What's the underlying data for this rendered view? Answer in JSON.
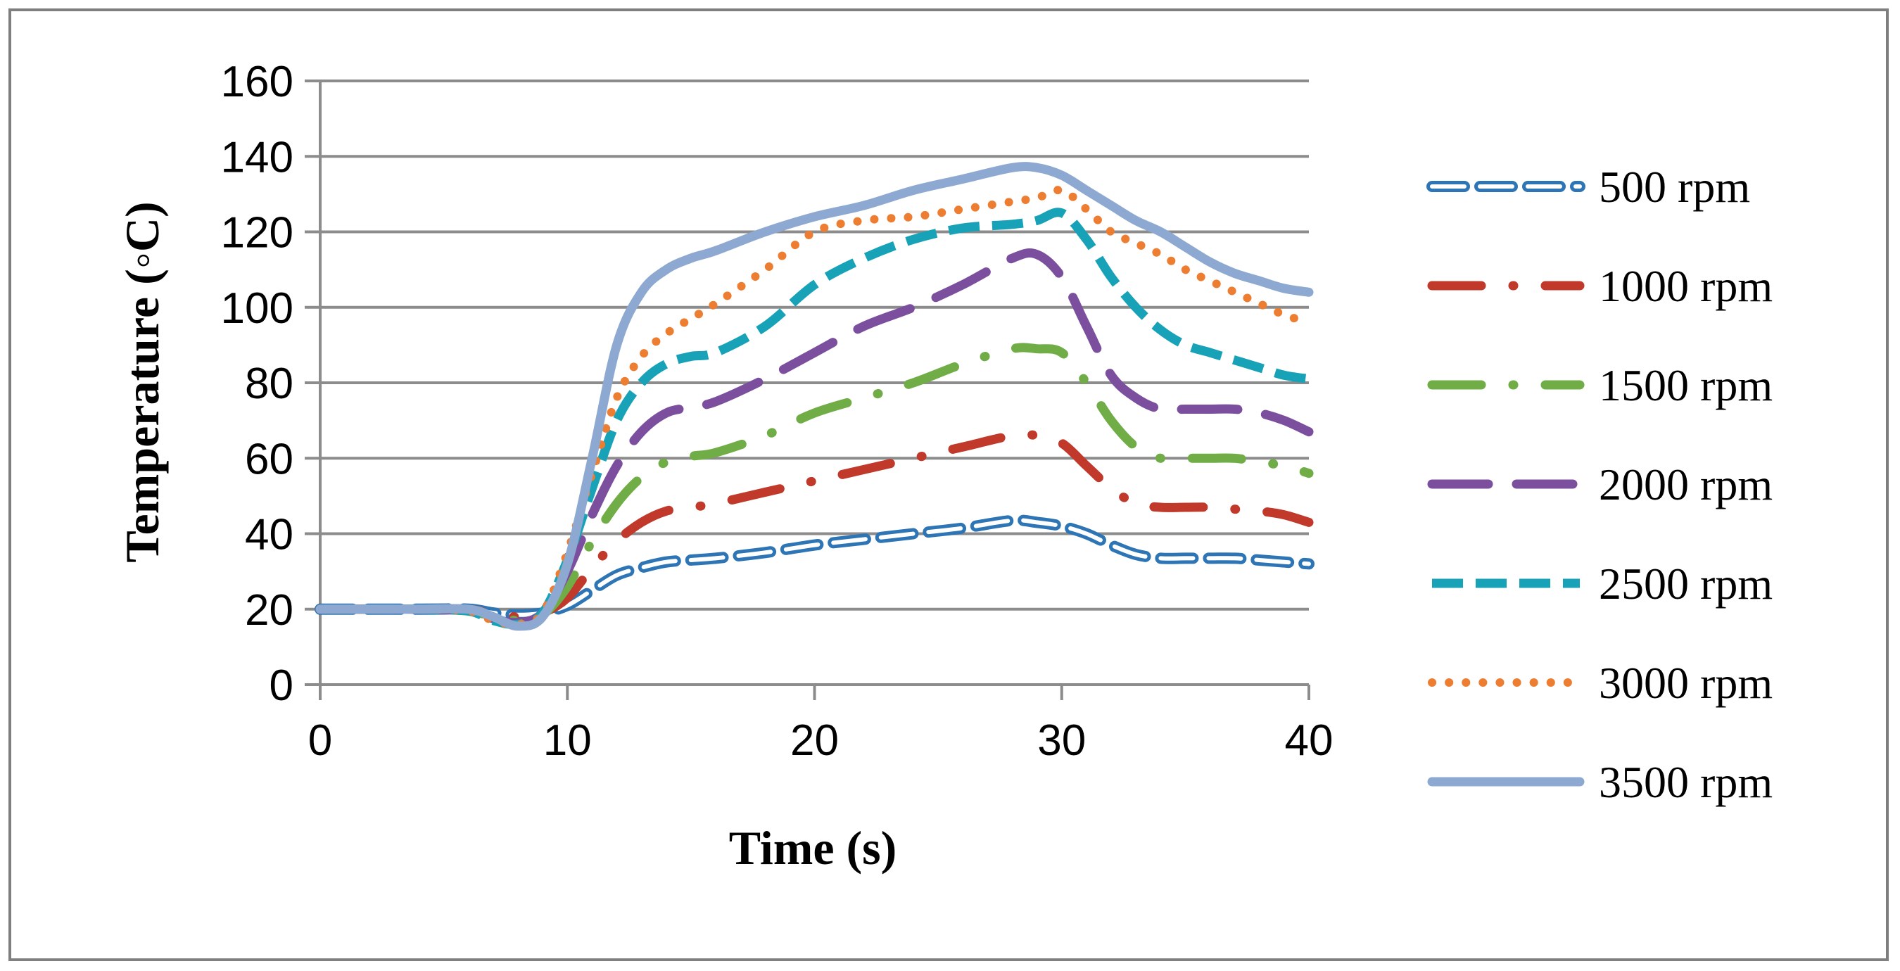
{
  "chart_data": {
    "type": "line",
    "title": "",
    "xlabel": "Time (s)",
    "ylabel": "Temperature (◦C)",
    "xlim": [
      0,
      40
    ],
    "ylim": [
      0,
      160
    ],
    "xticks": [
      0,
      10,
      20,
      30,
      40
    ],
    "yticks": [
      0,
      20,
      40,
      60,
      80,
      100,
      120,
      140,
      160
    ],
    "grid": "horizontal",
    "legend_position": "right",
    "x": [
      0,
      2,
      4,
      6,
      7,
      8,
      9,
      10,
      11,
      12,
      13,
      14,
      15,
      16,
      18,
      20,
      22,
      24,
      26,
      28,
      29,
      30,
      31,
      32,
      33,
      34,
      35,
      36,
      37,
      38,
      39,
      40
    ],
    "series": [
      {
        "name": "500 rpm",
        "style": "dash-outline",
        "color": "#2E75B6",
        "values": [
          20,
          20,
          20,
          20,
          19,
          18.5,
          19,
          21,
          25,
          29,
          31,
          32.5,
          33,
          33.5,
          35,
          37,
          38.5,
          40,
          41.5,
          43.5,
          43,
          42,
          40,
          37,
          34.5,
          33.5,
          33.5,
          33.5,
          33.5,
          33,
          32.5,
          32
        ]
      },
      {
        "name": "1000 rpm",
        "style": "dash-dot",
        "color": "#C0392B",
        "values": [
          20,
          20,
          20,
          20,
          18.5,
          18,
          19,
          23,
          31,
          38,
          43,
          46,
          47,
          48,
          51,
          54,
          57,
          60,
          63,
          66,
          66,
          64,
          58,
          52,
          48,
          47,
          47,
          47,
          46.5,
          46,
          45,
          43
        ]
      },
      {
        "name": "1500 rpm",
        "style": "dash-dot",
        "color": "#70AD47",
        "values": [
          20,
          20,
          20,
          19.5,
          18,
          17,
          18.5,
          26,
          38,
          48,
          55,
          59,
          60.5,
          61.5,
          66,
          72,
          76,
          80,
          85,
          89,
          89,
          88,
          80,
          70,
          63,
          60,
          60,
          60,
          60,
          59,
          58,
          56
        ]
      },
      {
        "name": "2000 rpm",
        "style": "long-dash",
        "color": "#7B4F9E",
        "values": [
          20,
          20,
          20,
          19.5,
          17.5,
          16.5,
          19,
          30,
          45,
          58,
          67,
          72,
          73.5,
          75,
          81,
          88,
          95,
          100,
          106,
          113,
          114,
          108,
          95,
          82,
          76,
          73,
          73,
          73,
          73,
          72,
          70,
          67
        ]
      },
      {
        "name": "2500 rpm",
        "style": "dash",
        "color": "#17A2B8",
        "values": [
          20,
          20,
          20,
          19.5,
          17,
          16,
          19,
          33,
          52,
          70,
          80,
          85,
          87,
          88,
          95,
          106,
          113,
          118,
          121,
          122,
          123,
          125,
          118,
          108,
          100,
          94,
          90,
          88,
          86,
          84,
          82,
          81
        ]
      },
      {
        "name": "3000 rpm",
        "style": "dot",
        "color": "#ED7D31",
        "values": [
          20,
          20,
          20,
          19.5,
          17,
          16,
          19,
          35,
          56,
          76,
          87,
          93,
          97,
          101,
          110,
          120,
          123,
          124,
          126,
          128,
          129,
          131,
          126,
          120,
          117,
          114,
          110,
          107,
          104,
          101,
          98,
          96
        ]
      },
      {
        "name": "3500 rpm",
        "style": "solid",
        "color": "#8EA9D1",
        "values": [
          20,
          20,
          20,
          20,
          18,
          15.5,
          18,
          32,
          60,
          90,
          104,
          110,
          113,
          115,
          120,
          124,
          127,
          131,
          134,
          137,
          137,
          135,
          131,
          127,
          123,
          120,
          116,
          112,
          109,
          107,
          105,
          104
        ]
      }
    ]
  }
}
